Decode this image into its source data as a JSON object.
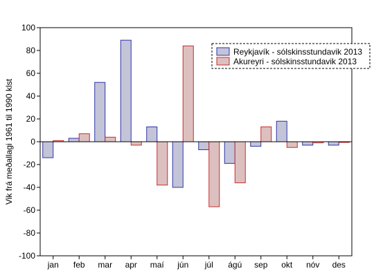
{
  "chart_data": {
    "type": "bar",
    "ylabel": "Vik frá meðallagi 1961 til 1990 klst",
    "xlabel": "",
    "title": "",
    "ylim": [
      -100,
      100
    ],
    "yticks": [
      100,
      80,
      60,
      40,
      20,
      0,
      -20,
      -40,
      -60,
      -80,
      -100
    ],
    "categories": [
      "jan",
      "feb",
      "mar",
      "apr",
      "maí",
      "jún",
      "júl",
      "ágú",
      "sep",
      "okt",
      "nóv",
      "des"
    ],
    "grid": false,
    "legend_position": "top-right",
    "series": [
      {
        "name": "Reykjavík - sólskinsstundavik 2013",
        "stroke": "#2b33a8",
        "fill": "#c4c4d8",
        "values": [
          -14,
          3,
          52,
          89,
          13,
          -40,
          -7,
          -19,
          -4,
          18,
          -3,
          -3
        ]
      },
      {
        "name": "Akureyri - sólskinsstundavik 2013",
        "stroke": "#cc2a2a",
        "fill": "#dcc0c0",
        "values": [
          1,
          7,
          4,
          -3,
          -38,
          84,
          -57,
          -36,
          13,
          -5,
          -1,
          0
        ]
      }
    ]
  }
}
